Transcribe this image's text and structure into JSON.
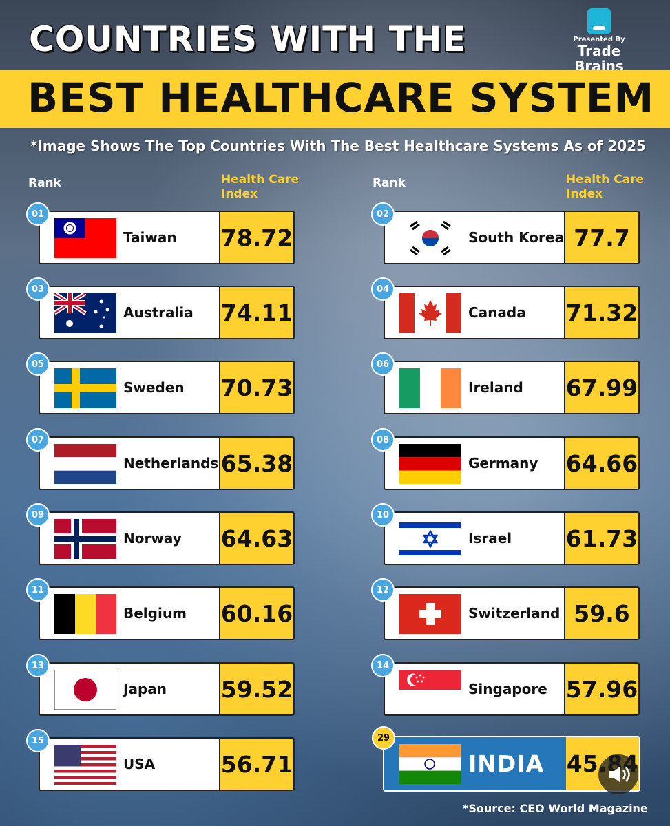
{
  "header": {
    "title_line1": "COUNTRIES WITH THE",
    "title_line2": "BEST HEALTHCARE SYSTEM",
    "subtitle": "*Image Shows The Top Countries With The Best Healthcare Systems As of 2025"
  },
  "brand": {
    "presented_by": "Presented By",
    "name": "Trade Brains"
  },
  "columns": {
    "rank": "Rank",
    "index_line1": "Health Care",
    "index_line2": "Index"
  },
  "rankings": [
    {
      "rank": "01",
      "country": "Taiwan",
      "value": "78.72"
    },
    {
      "rank": "02",
      "country": "South Korea",
      "value": "77.7"
    },
    {
      "rank": "03",
      "country": "Australia",
      "value": "74.11"
    },
    {
      "rank": "04",
      "country": "Canada",
      "value": "71.32"
    },
    {
      "rank": "05",
      "country": "Sweden",
      "value": "70.73"
    },
    {
      "rank": "06",
      "country": "Ireland",
      "value": "67.99"
    },
    {
      "rank": "07",
      "country": "Netherlands",
      "value": "65.38"
    },
    {
      "rank": "08",
      "country": "Germany",
      "value": "64.66"
    },
    {
      "rank": "09",
      "country": "Norway",
      "value": "64.63"
    },
    {
      "rank": "10",
      "country": "Israel",
      "value": "61.73"
    },
    {
      "rank": "11",
      "country": "Belgium",
      "value": "60.16"
    },
    {
      "rank": "12",
      "country": "Switzerland",
      "value": "59.6"
    },
    {
      "rank": "13",
      "country": "Japan",
      "value": "59.52"
    },
    {
      "rank": "14",
      "country": "Singapore",
      "value": "57.96"
    },
    {
      "rank": "15",
      "country": "USA",
      "value": "56.71"
    }
  ],
  "highlight": {
    "rank": "29",
    "country": "INDIA",
    "value": "45.84"
  },
  "source": "*Source: CEO World Magazine",
  "colors": {
    "accent_yellow": "#ffd130",
    "badge_blue": "#4aa6df",
    "india_blue": "#2677b9"
  }
}
